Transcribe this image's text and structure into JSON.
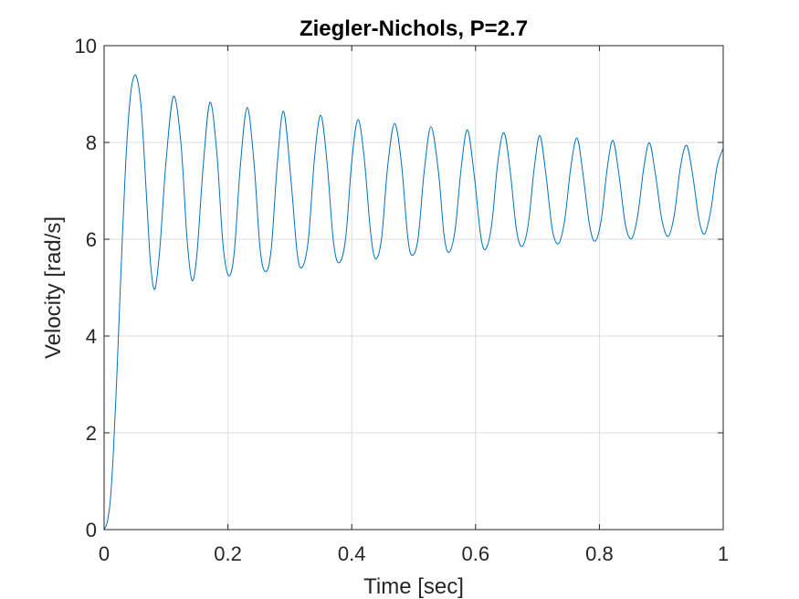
{
  "chart_data": {
    "type": "line",
    "title": "Ziegler-Nichols, P=2.7",
    "xlabel": "Time [sec]",
    "ylabel": "Velocity [rad/s]",
    "xlim": [
      0,
      1
    ],
    "ylim": [
      0,
      10
    ],
    "grid": true,
    "x_ticks": [
      0,
      0.2,
      0.4,
      0.6,
      0.8,
      1
    ],
    "x_tick_labels": [
      "0",
      "0.2",
      "0.4",
      "0.6",
      "0.8",
      "1"
    ],
    "y_ticks": [
      0,
      2,
      4,
      6,
      8,
      10
    ],
    "y_tick_labels": [
      "0",
      "2",
      "4",
      "6",
      "8",
      "10"
    ],
    "series": [
      {
        "color": "#0072bd",
        "x": [
          0.0,
          0.005,
          0.01,
          0.015,
          0.02,
          0.025,
          0.03,
          0.035,
          0.04,
          0.045,
          0.052,
          0.06,
          0.068,
          0.075,
          0.082,
          0.09,
          0.1,
          0.112,
          0.124,
          0.134,
          0.142,
          0.15,
          0.16,
          0.171,
          0.182,
          0.192,
          0.201,
          0.21,
          0.22,
          0.231,
          0.242,
          0.252,
          0.261,
          0.27,
          0.28,
          0.29,
          0.302,
          0.312,
          0.32,
          0.33,
          0.34,
          0.35,
          0.36,
          0.37,
          0.379,
          0.39,
          0.4,
          0.41,
          0.42,
          0.43,
          0.438,
          0.448,
          0.458,
          0.469,
          0.48,
          0.49,
          0.497,
          0.507,
          0.517,
          0.528,
          0.54,
          0.549,
          0.557,
          0.567,
          0.577,
          0.587,
          0.598,
          0.608,
          0.616,
          0.626,
          0.636,
          0.646,
          0.656,
          0.666,
          0.675,
          0.685,
          0.695,
          0.704,
          0.714,
          0.724,
          0.734,
          0.744,
          0.754,
          0.764,
          0.774,
          0.784,
          0.793,
          0.803,
          0.813,
          0.822,
          0.832,
          0.842,
          0.852,
          0.862,
          0.872,
          0.881,
          0.891,
          0.901,
          0.911,
          0.921,
          0.931,
          0.941,
          0.951,
          0.961,
          0.97,
          0.98,
          0.99,
          1.0
        ],
        "values": [
          0.0,
          0.15,
          0.6,
          1.6,
          3.0,
          4.6,
          6.2,
          7.6,
          8.6,
          9.2,
          9.37,
          8.7,
          7.0,
          5.5,
          4.97,
          5.8,
          7.6,
          8.95,
          8.0,
          6.0,
          5.15,
          5.7,
          7.5,
          8.83,
          7.8,
          5.9,
          5.25,
          5.7,
          7.5,
          8.72,
          7.6,
          5.8,
          5.33,
          5.8,
          7.6,
          8.64,
          7.2,
          5.7,
          5.42,
          6.0,
          7.7,
          8.56,
          7.6,
          6.0,
          5.51,
          6.0,
          7.6,
          8.47,
          7.7,
          6.2,
          5.6,
          6.0,
          7.5,
          8.39,
          7.6,
          6.1,
          5.67,
          6.0,
          7.4,
          8.32,
          7.4,
          6.1,
          5.73,
          6.2,
          7.5,
          8.26,
          7.3,
          6.1,
          5.79,
          6.3,
          7.6,
          8.2,
          7.4,
          6.2,
          5.85,
          6.3,
          7.5,
          8.14,
          7.3,
          6.2,
          5.91,
          6.4,
          7.5,
          8.09,
          7.3,
          6.3,
          5.96,
          6.4,
          7.5,
          8.04,
          7.3,
          6.3,
          6.01,
          6.5,
          7.5,
          7.99,
          7.3,
          6.4,
          6.06,
          6.5,
          7.5,
          7.94,
          7.3,
          6.4,
          6.11,
          6.6,
          7.5,
          7.88
        ]
      }
    ]
  }
}
